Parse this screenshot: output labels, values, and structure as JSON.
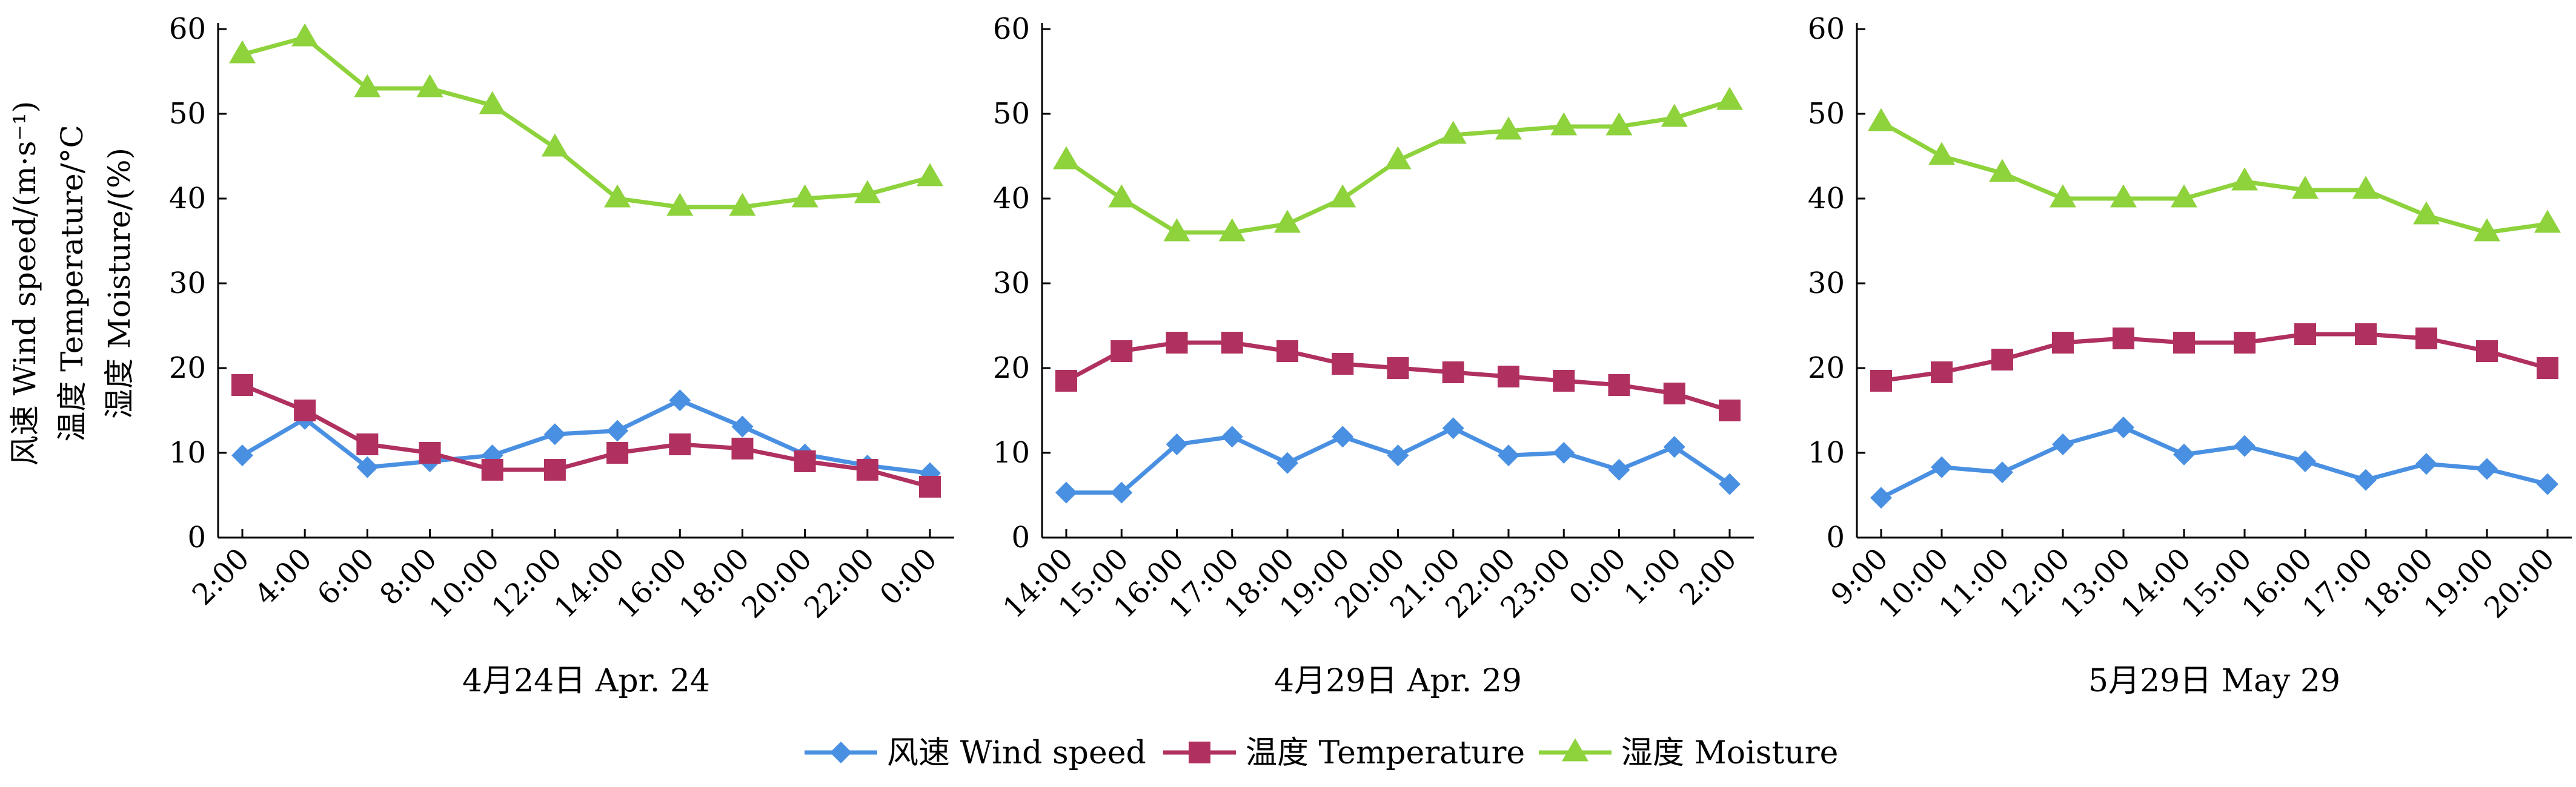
{
  "chart_data": {
    "type": "line",
    "ylabel_lines": [
      "风速 Wind speed/(m·s⁻¹)",
      "温度 Temperature/°C",
      "湿度 Moisture/(%)"
    ],
    "ylim": [
      0,
      60
    ],
    "yticks": [
      0,
      10,
      20,
      30,
      40,
      50,
      60
    ],
    "grid": false,
    "legend_position": "bottom-center",
    "series_styles": [
      {
        "color": "#4a90e2",
        "marker": "diamond"
      },
      {
        "color": "#b03060",
        "marker": "square"
      },
      {
        "color": "#8ed23c",
        "marker": "triangle"
      }
    ],
    "legend": [
      {
        "label": "风速 Wind speed"
      },
      {
        "label": "温度 Temperature"
      },
      {
        "label": "湿度 Moisture"
      }
    ],
    "panels": [
      {
        "xlabel": "4月24日 Apr. 24",
        "categories": [
          "2:00",
          "4:00",
          "6:00",
          "8:00",
          "10:00",
          "12:00",
          "14:00",
          "16:00",
          "18:00",
          "20:00",
          "22:00",
          "0:00"
        ],
        "series": [
          {
            "name": "风速 Wind speed",
            "values": [
              9.7,
              14,
              8.3,
              9,
              9.7,
              12.2,
              12.6,
              16.2,
              13.1,
              9.8,
              8.5,
              7.6
            ]
          },
          {
            "name": "温度 Temperature",
            "values": [
              18,
              15,
              11,
              10,
              8,
              8,
              10,
              11,
              10.5,
              9,
              8,
              6
            ]
          },
          {
            "name": "湿度 Moisture",
            "values": [
              57,
              59,
              53,
              53,
              51,
              46,
              40,
              39,
              39,
              40,
              40.5,
              42.5
            ]
          }
        ]
      },
      {
        "xlabel": "4月29日 Apr. 29",
        "categories": [
          "14:00",
          "15:00",
          "16:00",
          "17:00",
          "18:00",
          "19:00",
          "20:00",
          "21:00",
          "22:00",
          "23:00",
          "0:00",
          "1:00",
          "2:00"
        ],
        "series": [
          {
            "name": "风速 Wind speed",
            "values": [
              5.3,
              5.3,
              11,
              11.9,
              8.8,
              11.9,
              9.7,
              12.9,
              9.7,
              10,
              8,
              10.7,
              6.3
            ]
          },
          {
            "name": "温度 Temperature",
            "values": [
              18.5,
              22,
              23,
              23,
              22,
              20.5,
              20,
              19.5,
              19,
              18.5,
              18,
              17,
              15
            ]
          },
          {
            "name": "湿度 Moisture",
            "values": [
              44.5,
              40,
              36,
              36,
              37,
              40,
              44.5,
              47.5,
              48,
              48.5,
              48.5,
              49.5,
              51.5
            ]
          }
        ]
      },
      {
        "xlabel": "5月29日 May 29",
        "categories": [
          "9:00",
          "10:00",
          "11:00",
          "12:00",
          "13:00",
          "14:00",
          "15:00",
          "16:00",
          "17:00",
          "18:00",
          "19:00",
          "20:00"
        ],
        "series": [
          {
            "name": "风速 Wind speed",
            "values": [
              4.7,
              8.3,
              7.7,
              11,
              13,
              9.8,
              10.8,
              9,
              6.8,
              8.7,
              8.1,
              6.3
            ]
          },
          {
            "name": "温度 Temperature",
            "values": [
              18.5,
              19.5,
              21,
              23,
              23.5,
              23,
              23,
              24,
              24,
              23.5,
              22,
              20
            ]
          },
          {
            "name": "湿度 Moisture",
            "values": [
              49,
              45,
              43,
              40,
              40,
              40,
              42,
              41,
              41,
              38,
              36,
              37
            ]
          }
        ]
      }
    ]
  }
}
